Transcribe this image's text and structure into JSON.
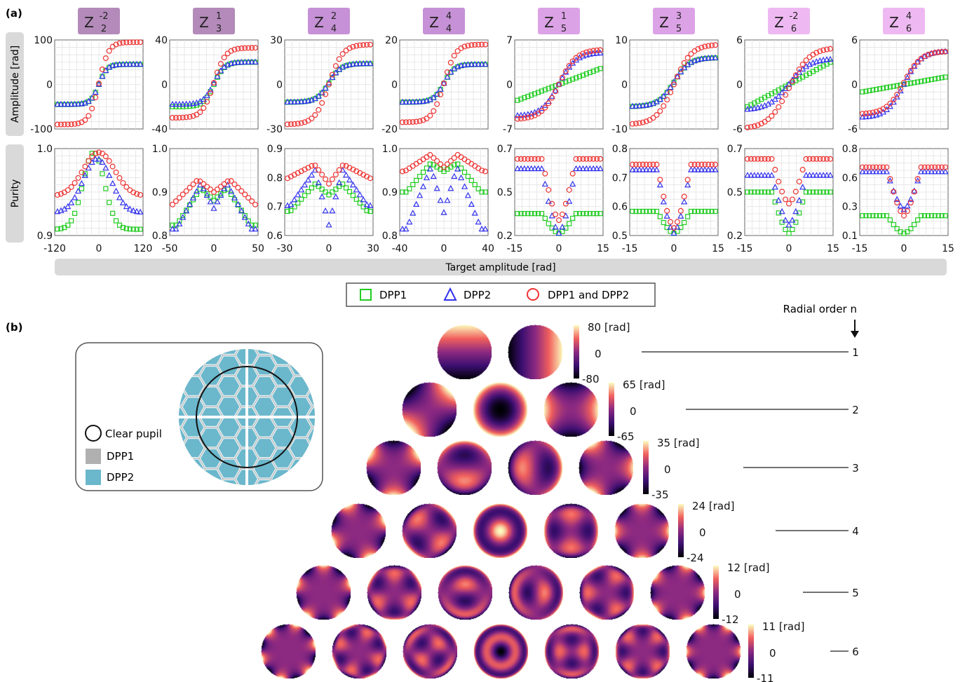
{
  "panel_a_label": "(a)",
  "panel_b_label": "(b)",
  "shared": {
    "amplitude_ylabel": "Amplitude [rad]",
    "purity_ylabel": "Purity",
    "xlabel": "Target amplitude [rad]"
  },
  "legend": {
    "placement": "below panel (a)",
    "items": [
      {
        "label": "DPP1",
        "marker": "square",
        "color": "#22cc22"
      },
      {
        "label": "DPP2",
        "marker": "triangle",
        "color": "#3333ee"
      },
      {
        "label": "DPP1 and DPP2",
        "marker": "circle",
        "color": "#ee3333"
      }
    ]
  },
  "chart_data": [
    {
      "type": "scatter",
      "title": {
        "base": "Z",
        "sup": "-2",
        "sub": "2"
      },
      "header_color": "#b38ab9",
      "n_points": 25,
      "amp": {
        "xlim": [
          -120,
          120
        ],
        "xticks": [
          "-120",
          "0",
          "120"
        ],
        "ylim": [
          -100,
          100
        ],
        "yticks": [
          "100",
          "0",
          "-100"
        ],
        "series": [
          {
            "name": "DPP1",
            "shape": "tanh",
            "center": 0,
            "width": 38,
            "min": -45,
            "max": 45
          },
          {
            "name": "DPP2",
            "shape": "tanh",
            "center": 0,
            "width": 38,
            "min": -45,
            "max": 45
          },
          {
            "name": "DPP1 and DPP2",
            "shape": "tanh",
            "center": 0,
            "width": 45,
            "min": -90,
            "max": 95
          }
        ]
      },
      "pur": {
        "ylim": [
          0.9,
          1.0
        ],
        "yticks": [
          "1.0",
          "0.9"
        ],
        "series": [
          {
            "name": "DPP1",
            "shape": "peak",
            "baseline": 0.905,
            "peak": 0.998,
            "center": -15,
            "halfwidth": 65
          },
          {
            "name": "DPP2",
            "shape": "peak",
            "baseline": 0.925,
            "peak": 0.99,
            "center": -5,
            "halfwidth": 85
          },
          {
            "name": "DPP1 and DPP2",
            "shape": "peak",
            "baseline": 0.945,
            "peak": 0.998,
            "center": 0,
            "halfwidth": 95
          }
        ]
      }
    },
    {
      "type": "scatter",
      "title": {
        "base": "Z",
        "sup": "1",
        "sub": "3"
      },
      "header_color": "#b38ab9",
      "n_points": 25,
      "amp": {
        "xlim": [
          -50,
          50
        ],
        "xticks": [
          "-50",
          "0",
          "50"
        ],
        "ylim": [
          -40,
          40
        ],
        "yticks": [
          "40",
          "0",
          "-40"
        ],
        "series": [
          {
            "name": "DPP1",
            "shape": "tanh",
            "center": 0,
            "width": 20,
            "min": -20,
            "max": 20
          },
          {
            "name": "DPP2",
            "shape": "tanh",
            "center": 0,
            "width": 20,
            "min": -18,
            "max": 20
          },
          {
            "name": "DPP1 and DPP2",
            "shape": "tanh",
            "center": 0,
            "width": 22,
            "min": -30,
            "max": 33
          }
        ]
      },
      "pur": {
        "ylim": [
          0.8,
          1.0
        ],
        "yticks": [
          "1.0",
          "0.9",
          "0.8"
        ],
        "series": [
          {
            "name": "DPP1",
            "shape": "vpeak",
            "baseline": 0.82,
            "peak": 0.91,
            "dip": 0.88,
            "center": 0,
            "halfwidth": 45
          },
          {
            "name": "DPP2",
            "shape": "vpeak",
            "baseline": 0.81,
            "peak": 0.92,
            "dip": 0.86,
            "center": 0,
            "halfwidth": 45
          },
          {
            "name": "DPP1 and DPP2",
            "shape": "vpeak",
            "baseline": 0.86,
            "peak": 0.93,
            "dip": 0.9,
            "center": 0,
            "halfwidth": 55
          }
        ]
      }
    },
    {
      "type": "scatter",
      "title": {
        "base": "Z",
        "sup": "2",
        "sub": "4"
      },
      "header_color": "#c691d6",
      "n_points": 25,
      "amp": {
        "xlim": [
          -30,
          30
        ],
        "xticks": [
          "-30",
          "0",
          "30"
        ],
        "ylim": [
          -30,
          30
        ],
        "yticks": [
          "30",
          "0",
          "-30"
        ],
        "series": [
          {
            "name": "DPP1",
            "shape": "tanh",
            "center": 0,
            "width": 14,
            "min": -12,
            "max": 14
          },
          {
            "name": "DPP2",
            "shape": "tanh",
            "center": 0,
            "width": 14,
            "min": -12,
            "max": 14
          },
          {
            "name": "DPP1 and DPP2",
            "shape": "tanh",
            "center": 0,
            "width": 16,
            "min": -27,
            "max": 27
          }
        ]
      },
      "pur": {
        "ylim": [
          0.6,
          0.9
        ],
        "yticks": [
          "0.9",
          "0.8",
          "0.7",
          "0.6"
        ],
        "series": [
          {
            "name": "DPP1",
            "shape": "vpeak",
            "baseline": 0.68,
            "peak": 0.78,
            "dip": 0.74,
            "center": 0,
            "halfwidth": 28
          },
          {
            "name": "DPP2",
            "shape": "vpeak",
            "baseline": 0.7,
            "peak": 0.83,
            "dip": 0.63,
            "center": 0,
            "halfwidth": 28
          },
          {
            "name": "DPP1 and DPP2",
            "shape": "vpeak",
            "baseline": 0.8,
            "peak": 0.85,
            "dip": 0.78,
            "center": 0,
            "halfwidth": 30
          }
        ]
      }
    },
    {
      "type": "scatter",
      "title": {
        "base": "Z",
        "sup": "4",
        "sub": "4"
      },
      "header_color": "#c691d6",
      "n_points": 25,
      "amp": {
        "xlim": [
          -40,
          40
        ],
        "xticks": [
          "-40",
          "0",
          "40"
        ],
        "ylim": [
          -20,
          20
        ],
        "yticks": [
          "20",
          "0",
          "-20"
        ],
        "series": [
          {
            "name": "DPP1",
            "shape": "tanh",
            "center": 0,
            "width": 16,
            "min": -8,
            "max": 9
          },
          {
            "name": "DPP2",
            "shape": "tanh",
            "center": 0,
            "width": 16,
            "min": -8,
            "max": 9
          },
          {
            "name": "DPP1 and DPP2",
            "shape": "tanh",
            "center": 0,
            "width": 18,
            "min": -17,
            "max": 18
          }
        ]
      },
      "pur": {
        "ylim": [
          0.8,
          1.0
        ],
        "yticks": [
          "1.0",
          "0.9",
          "0.8"
        ],
        "series": [
          {
            "name": "DPP1",
            "shape": "vpeak",
            "baseline": 0.9,
            "peak": 0.97,
            "dip": 0.95,
            "center": 0,
            "halfwidth": 36
          },
          {
            "name": "DPP2",
            "shape": "vpeak",
            "baseline": 0.81,
            "peak": 0.96,
            "dip": 0.85,
            "center": 0,
            "halfwidth": 36
          },
          {
            "name": "DPP1 and DPP2",
            "shape": "vpeak",
            "baseline": 0.95,
            "peak": 0.99,
            "dip": 0.96,
            "center": 0,
            "halfwidth": 38
          }
        ]
      }
    },
    {
      "type": "scatter",
      "title": {
        "base": "Z",
        "sup": "1",
        "sub": "5"
      },
      "header_color": "#dca2e6",
      "n_points": 25,
      "amp": {
        "xlim": [
          -15,
          15
        ],
        "xticks": [
          "-15",
          "0",
          "15"
        ],
        "ylim": [
          -7,
          7
        ],
        "yticks": [
          "7",
          "0",
          "-7"
        ],
        "series": [
          {
            "name": "DPP1",
            "shape": "linear",
            "center": 0,
            "width": 15,
            "min": -2.5,
            "max": 2.5
          },
          {
            "name": "DPP2",
            "shape": "tanh",
            "center": 0,
            "width": 10,
            "min": -5,
            "max": 5
          },
          {
            "name": "DPP1 and DPP2",
            "shape": "tanh",
            "center": 0,
            "width": 10,
            "min": -5.5,
            "max": 5.5
          }
        ]
      },
      "pur": {
        "ylim": [
          0.2,
          0.7
        ],
        "yticks": [
          "0.7",
          "0.5",
          "0.2"
        ],
        "series": [
          {
            "name": "DPP1",
            "shape": "dip",
            "baseline": 0.32,
            "dip": 0.2,
            "center": 0,
            "halfwidth": 6
          },
          {
            "name": "DPP2",
            "shape": "dip",
            "baseline": 0.59,
            "dip": 0.2,
            "center": 0,
            "halfwidth": 6
          },
          {
            "name": "DPP1 and DPP2",
            "shape": "dip",
            "baseline": 0.65,
            "dip": 0.28,
            "center": 0,
            "halfwidth": 6
          }
        ]
      }
    },
    {
      "type": "scatter",
      "title": {
        "base": "Z",
        "sup": "3",
        "sub": "5"
      },
      "header_color": "#dca2e6",
      "n_points": 25,
      "amp": {
        "xlim": [
          -15,
          15
        ],
        "xticks": [
          "-15",
          "0",
          "15"
        ],
        "ylim": [
          -10,
          10
        ],
        "yticks": [
          "10",
          "0",
          "-10"
        ],
        "series": [
          {
            "name": "DPP1",
            "shape": "tanh",
            "center": 0,
            "width": 9,
            "min": -5,
            "max": 6
          },
          {
            "name": "DPP2",
            "shape": "tanh",
            "center": 0,
            "width": 9,
            "min": -5,
            "max": 6
          },
          {
            "name": "DPP1 and DPP2",
            "shape": "tanh",
            "center": 0,
            "width": 10,
            "min": -9,
            "max": 9
          }
        ]
      },
      "pur": {
        "ylim": [
          0.5,
          0.8
        ],
        "yticks": [
          "0.8",
          "0.7",
          "0.6",
          "0.5"
        ],
        "series": [
          {
            "name": "DPP1",
            "shape": "dip",
            "baseline": 0.58,
            "dip": 0.5,
            "center": 0,
            "halfwidth": 6
          },
          {
            "name": "DPP2",
            "shape": "dip",
            "baseline": 0.73,
            "dip": 0.5,
            "center": 0,
            "halfwidth": 6
          },
          {
            "name": "DPP1 and DPP2",
            "shape": "dip",
            "baseline": 0.75,
            "dip": 0.52,
            "center": 0,
            "halfwidth": 6
          }
        ]
      }
    },
    {
      "type": "scatter",
      "title": {
        "base": "Z",
        "sup": "-2",
        "sub": "6"
      },
      "header_color": "#eeb9f2",
      "n_points": 25,
      "amp": {
        "xlim": [
          -15,
          15
        ],
        "xticks": [
          "-15",
          "0",
          "15"
        ],
        "ylim": [
          -6,
          6
        ],
        "yticks": [
          "6",
          "0",
          "-6"
        ],
        "series": [
          {
            "name": "DPP1",
            "shape": "linear",
            "center": 0,
            "width": 15,
            "min": -3,
            "max": 3
          },
          {
            "name": "DPP2",
            "shape": "tanh",
            "center": 0,
            "width": 12,
            "min": -3.5,
            "max": 3.5
          },
          {
            "name": "DPP1 and DPP2",
            "shape": "tanh",
            "center": 0,
            "width": 12,
            "min": -6,
            "max": 5
          }
        ]
      },
      "pur": {
        "ylim": [
          0.2,
          0.7
        ],
        "yticks": [
          "0.7",
          "0.5",
          "0.2"
        ],
        "series": [
          {
            "name": "DPP1",
            "shape": "dip",
            "baseline": 0.45,
            "dip": 0.2,
            "center": 0,
            "halfwidth": 6
          },
          {
            "name": "DPP2",
            "shape": "dip",
            "baseline": 0.55,
            "dip": 0.25,
            "center": 0,
            "halfwidth": 6
          },
          {
            "name": "DPP1 and DPP2",
            "shape": "dip",
            "baseline": 0.65,
            "dip": 0.38,
            "center": 0,
            "halfwidth": 6
          }
        ]
      }
    },
    {
      "type": "scatter",
      "title": {
        "base": "Z",
        "sup": "4",
        "sub": "6"
      },
      "header_color": "#eeb9f2",
      "n_points": 25,
      "amp": {
        "xlim": [
          -15,
          15
        ],
        "xticks": [
          "-15",
          "0",
          "15"
        ],
        "ylim": [
          -6,
          6
        ],
        "yticks": [
          "6",
          "0",
          "-6"
        ],
        "series": [
          {
            "name": "DPP1",
            "shape": "linear",
            "center": 0,
            "width": 15,
            "min": -1,
            "max": 1
          },
          {
            "name": "DPP2",
            "shape": "tanh",
            "center": 0,
            "width": 10,
            "min": -4.5,
            "max": 4.5
          },
          {
            "name": "DPP1 and DPP2",
            "shape": "tanh",
            "center": 0,
            "width": 10,
            "min": -4,
            "max": 4.5
          }
        ]
      },
      "pur": {
        "ylim": [
          0.1,
          0.8
        ],
        "yticks": [
          "0.8",
          "0.6",
          "0.3",
          "0.1"
        ],
        "series": [
          {
            "name": "DPP1",
            "shape": "dip",
            "baseline": 0.25,
            "dip": 0.1,
            "center": 0,
            "halfwidth": 6
          },
          {
            "name": "DPP2",
            "shape": "dip",
            "baseline": 0.62,
            "dip": 0.3,
            "center": 0,
            "halfwidth": 6
          },
          {
            "name": "DPP1 and DPP2",
            "shape": "dip",
            "baseline": 0.66,
            "dip": 0.25,
            "center": 0,
            "halfwidth": 6
          }
        ]
      }
    }
  ],
  "pupil_inset": {
    "legend": [
      {
        "label": "Clear pupil",
        "swatch": "circle"
      },
      {
        "label": "DPP1",
        "swatch": "#b0b0b0"
      },
      {
        "label": "DPP2",
        "swatch": "#6bb7cc"
      }
    ]
  },
  "radial_order_label": "Radial order  n",
  "modes": {
    "rows": [
      {
        "n": "1",
        "count": 2,
        "colorbar": {
          "max": "80",
          "zero": "0",
          "min": "-80",
          "unit": "[rad]"
        }
      },
      {
        "n": "2",
        "count": 3,
        "colorbar": {
          "max": "65",
          "zero": "0",
          "min": "-65",
          "unit": "[rad]"
        }
      },
      {
        "n": "3",
        "count": 4,
        "colorbar": {
          "max": "35",
          "zero": "0",
          "min": "-35",
          "unit": "[rad]"
        }
      },
      {
        "n": "4",
        "count": 5,
        "colorbar": {
          "max": "24",
          "zero": "0",
          "min": "-24",
          "unit": "[rad]"
        }
      },
      {
        "n": "5",
        "count": 6,
        "colorbar": {
          "max": "12",
          "zero": "0",
          "min": "-12",
          "unit": "[rad]"
        }
      },
      {
        "n": "6",
        "count": 7,
        "colorbar": {
          "max": "11",
          "zero": "0",
          "min": "-11",
          "unit": "[rad]"
        }
      }
    ]
  }
}
